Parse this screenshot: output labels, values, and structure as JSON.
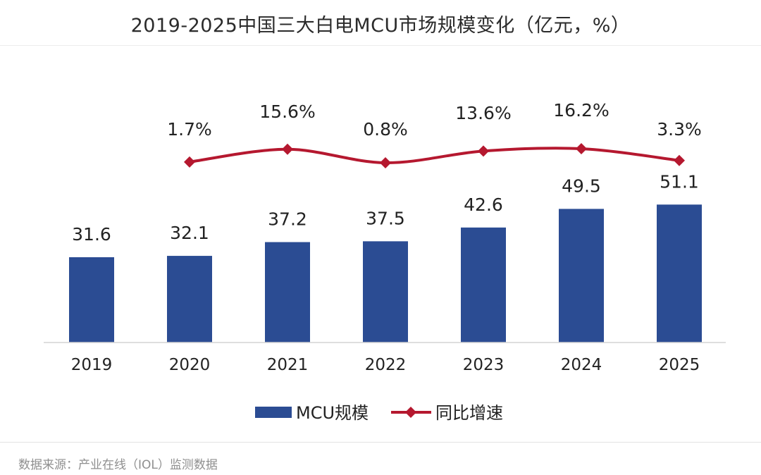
{
  "title": "2019-2025中国三大白电MCU市场规模变化（亿元，%）",
  "source": "数据来源：产业在线（IOL）监测数据",
  "colors": {
    "bar": "#2b4c93",
    "line": "#b5182f",
    "label": "#222222",
    "axis": "#d4d4d4"
  },
  "legend": {
    "bar_label": "MCU规模",
    "line_label": "同比增速"
  },
  "chart_data": {
    "type": "bar",
    "categories": [
      "2019",
      "2020",
      "2021",
      "2022",
      "2023",
      "2024",
      "2025"
    ],
    "series": [
      {
        "name": "MCU规模",
        "type": "bar",
        "values": [
          31.6,
          32.1,
          37.2,
          37.5,
          42.6,
          49.5,
          51.1
        ],
        "labels": [
          "31.6",
          "32.1",
          "37.2",
          "37.5",
          "42.6",
          "49.5",
          "51.1"
        ]
      },
      {
        "name": "同比增速",
        "type": "line",
        "values": [
          null,
          1.7,
          15.6,
          0.8,
          13.6,
          16.2,
          3.3
        ],
        "labels": [
          "",
          "1.7%",
          "15.6%",
          "0.8%",
          "13.6%",
          "16.2%",
          "3.3%"
        ]
      }
    ],
    "title": "2019-2025中国三大白电MCU市场规模变化（亿元，%）",
    "xlabel": "",
    "ylabel": "",
    "legend_position": "bottom",
    "grid": false
  }
}
